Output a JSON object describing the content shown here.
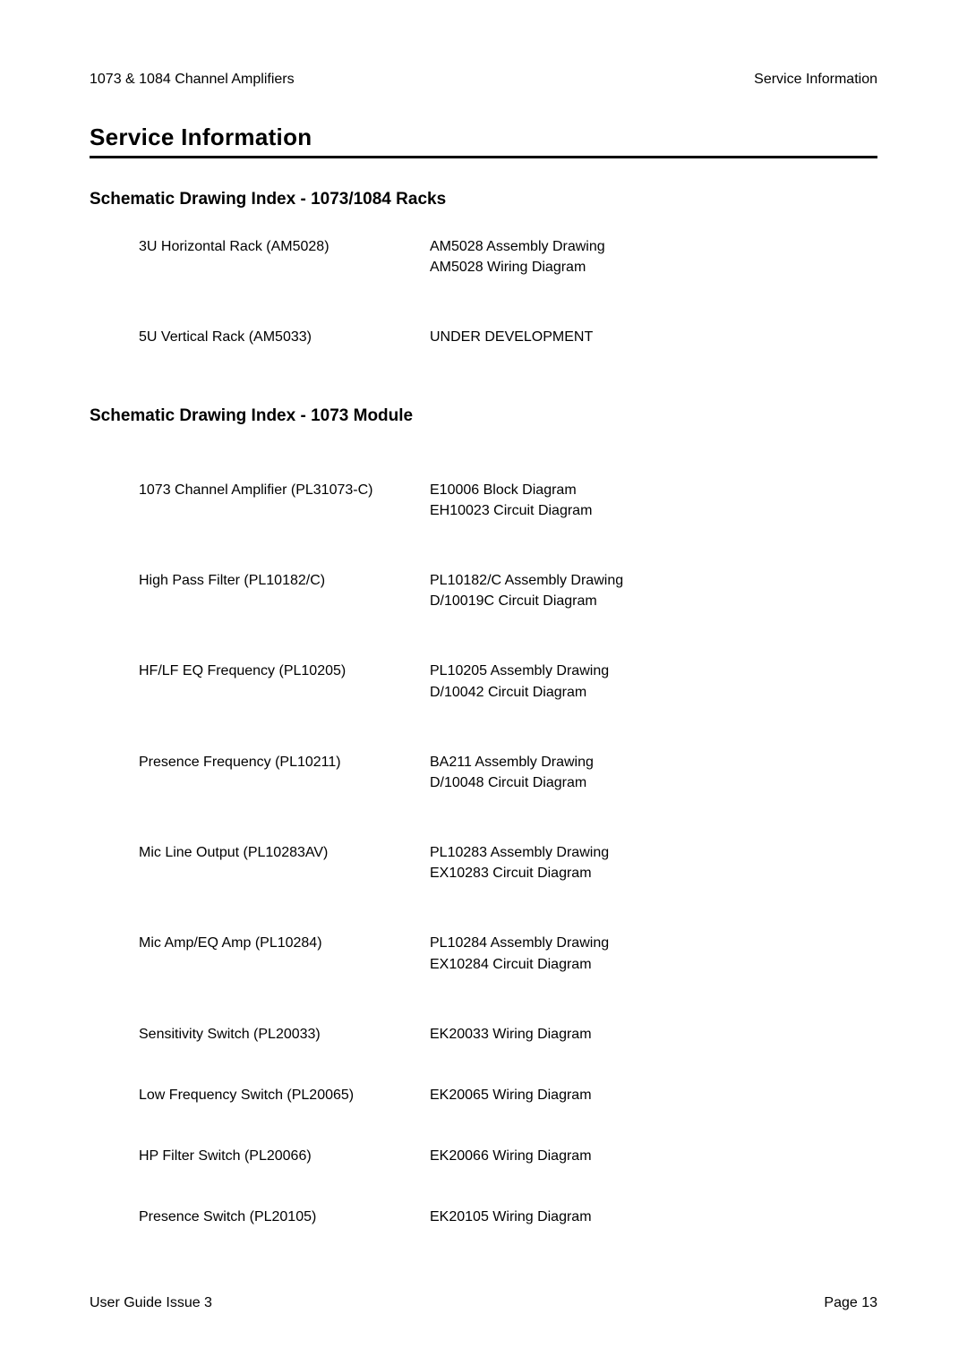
{
  "header": {
    "left": "1073 & 1084 Channel Amplifiers",
    "right": "Service Information"
  },
  "main_title": "Service Information",
  "section1": {
    "heading": "Schematic Drawing Index - 1073/1084 Racks",
    "rows": [
      {
        "left": "3U Horizontal Rack (AM5028)",
        "right": "AM5028 Assembly Drawing\nAM5028 Wiring Diagram"
      },
      {
        "left": "5U Vertical Rack (AM5033)",
        "right": "UNDER DEVELOPMENT"
      }
    ]
  },
  "section2": {
    "heading": "Schematic Drawing Index - 1073 Module",
    "rows": [
      {
        "left": "1073 Channel Amplifier (PL31073-C)",
        "right": "E10006  Block Diagram\nEH10023  Circuit Diagram"
      },
      {
        "left": "High Pass Filter (PL10182/C)",
        "right": "PL10182/C  Assembly Drawing\nD/10019C  Circuit Diagram"
      },
      {
        "left": "HF/LF EQ Frequency (PL10205)",
        "right": "PL10205  Assembly Drawing\nD/10042  Circuit Diagram"
      },
      {
        "left": "Presence Frequency (PL10211)",
        "right": "BA211 Assembly Drawing\nD/10048  Circuit Diagram"
      },
      {
        "left": "Mic Line Output (PL10283AV)",
        "right": "PL10283  Assembly Drawing\nEX10283  Circuit Diagram"
      },
      {
        "left": "Mic Amp/EQ Amp (PL10284)",
        "right": "PL10284  Assembly Drawing\nEX10284  Circuit Diagram"
      },
      {
        "left": "Sensitivity Switch (PL20033)",
        "right": "EK20033  Wiring Diagram"
      },
      {
        "left": "Low Frequency Switch (PL20065)",
        "right": "EK20065  Wiring Diagram"
      },
      {
        "left": "HP Filter Switch (PL20066)",
        "right": "EK20066  Wiring Diagram"
      },
      {
        "left": "Presence Switch (PL20105)",
        "right": "EK20105  Wiring Diagram"
      }
    ]
  },
  "footer": {
    "left": "User Guide  Issue 3",
    "right": "Page 13"
  },
  "colors": {
    "text": "#000000",
    "background": "#ffffff",
    "rule": "#000000"
  },
  "typography": {
    "body_fontsize": 16,
    "heading_fontsize": 26,
    "subheading_fontsize": 19
  }
}
